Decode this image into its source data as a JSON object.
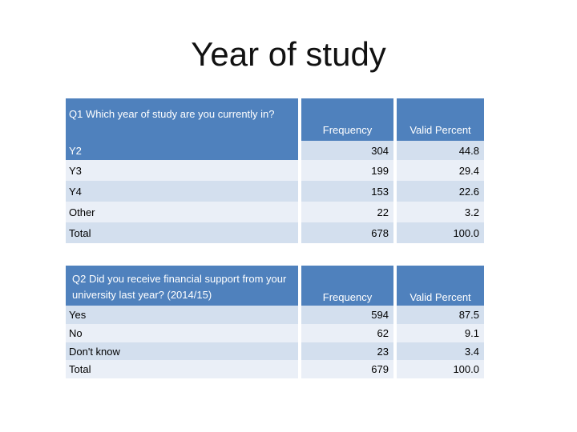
{
  "title": "Year of study",
  "table1": {
    "question": "Q1 Which year of study are you currently in?",
    "col_frequency": "Frequency",
    "col_valid_percent": "Valid Percent",
    "rows": [
      {
        "label": "Y2",
        "frequency": "304",
        "percent": "44.8"
      },
      {
        "label": "Y3",
        "frequency": "199",
        "percent": "29.4"
      },
      {
        "label": "Y4",
        "frequency": "153",
        "percent": "22.6"
      },
      {
        "label": "Other",
        "frequency": "22",
        "percent": "3.2"
      },
      {
        "label": "Total",
        "frequency": "678",
        "percent": "100.0"
      }
    ]
  },
  "table2": {
    "question": "Q2 Did you receive financial support from your university last year? (2014/15)",
    "col_frequency": "Frequency",
    "col_valid_percent": "Valid Percent",
    "rows": [
      {
        "label": "Yes",
        "frequency": "594",
        "percent": "87.5"
      },
      {
        "label": "No",
        "frequency": "62",
        "percent": "9.1"
      },
      {
        "label": "Don't know",
        "frequency": "23",
        "percent": "3.4"
      },
      {
        "label": "Total",
        "frequency": "679",
        "percent": "100.0"
      }
    ]
  }
}
